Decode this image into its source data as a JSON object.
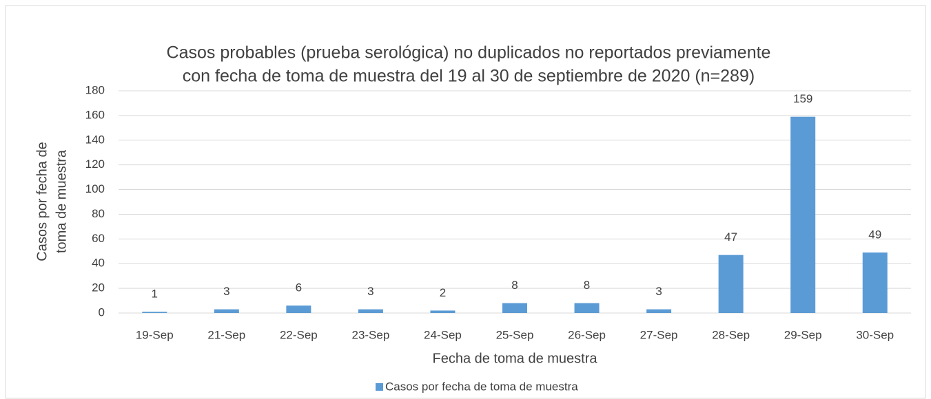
{
  "chart_data": {
    "type": "bar",
    "title": [
      "Casos probables (prueba serológica) no duplicados no reportados previamente",
      "con fecha de toma de muestra del 19 al 30 de septiembre de 2020 (n=289)"
    ],
    "x_label": "Fecha de toma de muestra",
    "y_label": [
      "Casos por fecha de",
      "toma de muestra"
    ],
    "categories": [
      "19-Sep",
      "21-Sep",
      "22-Sep",
      "23-Sep",
      "24-Sep",
      "25-Sep",
      "26-Sep",
      "27-Sep",
      "28-Sep",
      "29-Sep",
      "30-Sep"
    ],
    "series": [
      {
        "name": "Casos por fecha de toma de muestra",
        "color": "#5b9bd5",
        "values": [
          1,
          3,
          6,
          3,
          2,
          8,
          8,
          3,
          47,
          159,
          49
        ]
      }
    ],
    "ylim": [
      0,
      180
    ],
    "yticks": [
      0,
      20,
      40,
      60,
      80,
      100,
      120,
      140,
      160,
      180
    ],
    "grid": true,
    "legend": "bottom"
  }
}
